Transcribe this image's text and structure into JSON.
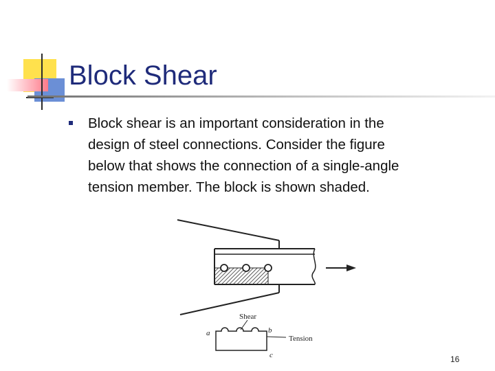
{
  "slide": {
    "title": "Block Shear",
    "bullets": [
      {
        "lines": [
          "Block shear is an important consideration in the",
          "design of steel connections. Consider the figure",
          "below that shows the connection of a single-angle",
          "tension member. The block is shown shaded."
        ]
      }
    ],
    "page_number": "16"
  },
  "figure": {
    "labels": {
      "shear": "Shear",
      "a": "a",
      "b": "b",
      "c": "c",
      "tension": "Tension"
    }
  },
  "colors": {
    "title": "#1f2b7a",
    "deco_yellow": "#ffe14d",
    "deco_red": "#ff7a8a",
    "deco_blue": "#6b8fd6",
    "bullet": "#1f2b7a"
  }
}
